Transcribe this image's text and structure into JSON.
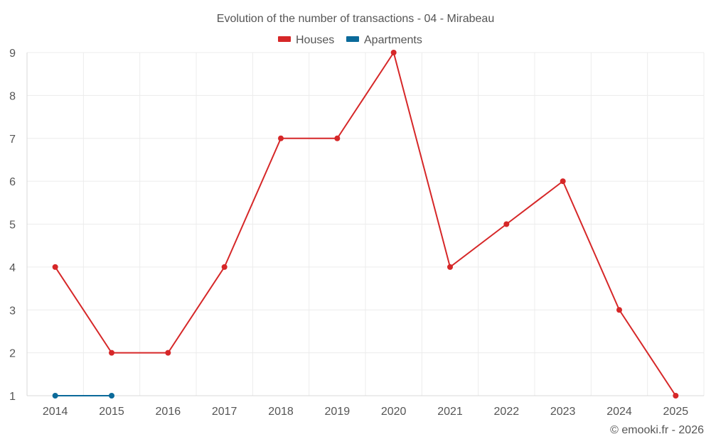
{
  "chart_data": {
    "type": "line",
    "title": "Evolution of the number of transactions - 04 - Mirabeau",
    "categories": [
      "2014",
      "2015",
      "2016",
      "2017",
      "2018",
      "2019",
      "2020",
      "2021",
      "2022",
      "2023",
      "2024",
      "2025"
    ],
    "series": [
      {
        "name": "Houses",
        "color": "#d62728",
        "values": [
          4,
          2,
          2,
          4,
          7,
          7,
          9,
          4,
          5,
          6,
          3,
          1
        ]
      },
      {
        "name": "Apartments",
        "color": "#0b6a9a",
        "values": [
          1,
          1,
          null,
          null,
          null,
          null,
          null,
          null,
          null,
          null,
          null,
          null
        ]
      }
    ],
    "ylim": [
      1,
      9
    ],
    "yticks": [
      "1",
      "2",
      "3",
      "4",
      "5",
      "6",
      "7",
      "8",
      "9"
    ],
    "xlabel": "",
    "ylabel": "",
    "legend_position": "top-center",
    "grid": true
  },
  "footer": {
    "text": "© emooki.fr - 2026"
  }
}
